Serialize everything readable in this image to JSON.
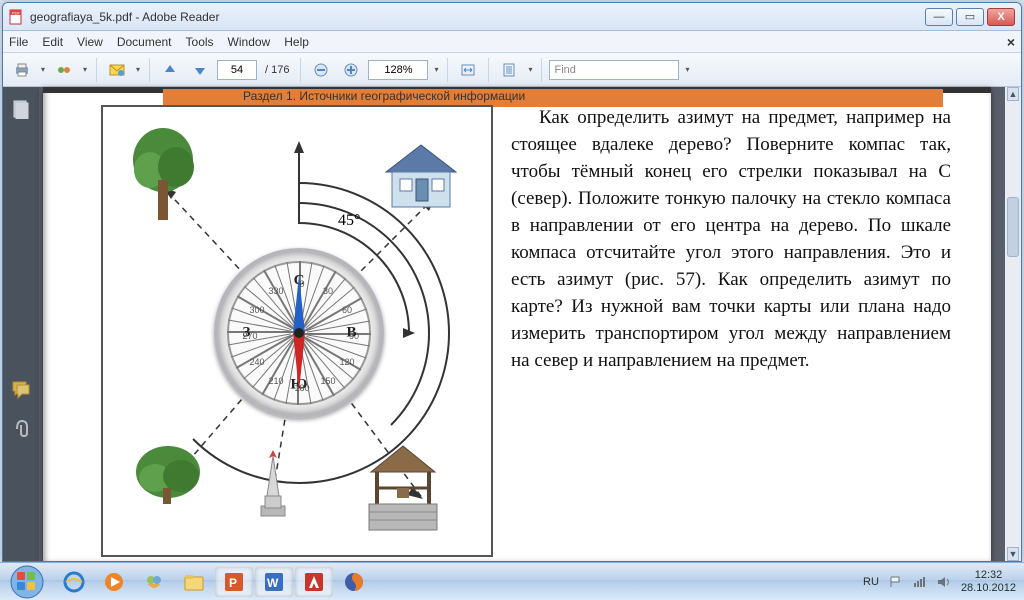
{
  "window": {
    "title": "geografiaya_5k.pdf - Adobe Reader",
    "min": "—",
    "max": "▭",
    "close": "X"
  },
  "menu": {
    "items": [
      "File",
      "Edit",
      "View",
      "Document",
      "Tools",
      "Window",
      "Help"
    ],
    "closex": "×"
  },
  "toolbar": {
    "page_current": "54",
    "page_total": "/ 176",
    "zoom": "128%",
    "find_placeholder": "Find"
  },
  "doc": {
    "strip_text": "Раздел 1. Источники географической информации",
    "angle_label": "45°",
    "cardinals": {
      "n": "С",
      "e": "В",
      "s": "Ю",
      "w": "З"
    },
    "tick_labels": [
      0,
      30,
      60,
      90,
      120,
      150,
      180,
      210,
      240,
      270,
      300,
      330
    ],
    "paragraph": "Как определить азимут на предмет, например на стоящее вдалеке дерево? Поверните компас так, чтобы тёмный конец его стрелки показывал на С (север). Положите тонкую палочку на стекло компаса в направлении от его центра на дерево. По шкале компаса отсчитайте угол этого направления. Это и есть азимут (рис. 57). Как определить азимут по карте? Из нужной вам точки карты или плана надо измерить транспортиром угол между направлением на север и направлением на предмет."
  },
  "taskbar": {
    "lang": "RU",
    "time": "12:32",
    "date": "28.10.2012"
  },
  "colors": {
    "title_grad_a": "#eaf1fb",
    "title_grad_b": "#d9e6f7",
    "orange_strip": "#e07e3a",
    "compass_border": "#b5b5bc",
    "needle_n": "#2460c6",
    "needle_s": "#d02525",
    "taskbar_bg": "linear-gradient(#dfeaf8,#bcd2ec 45%,#a7c3e4 48%,#b7cfea 52%,#dceaf8)"
  }
}
